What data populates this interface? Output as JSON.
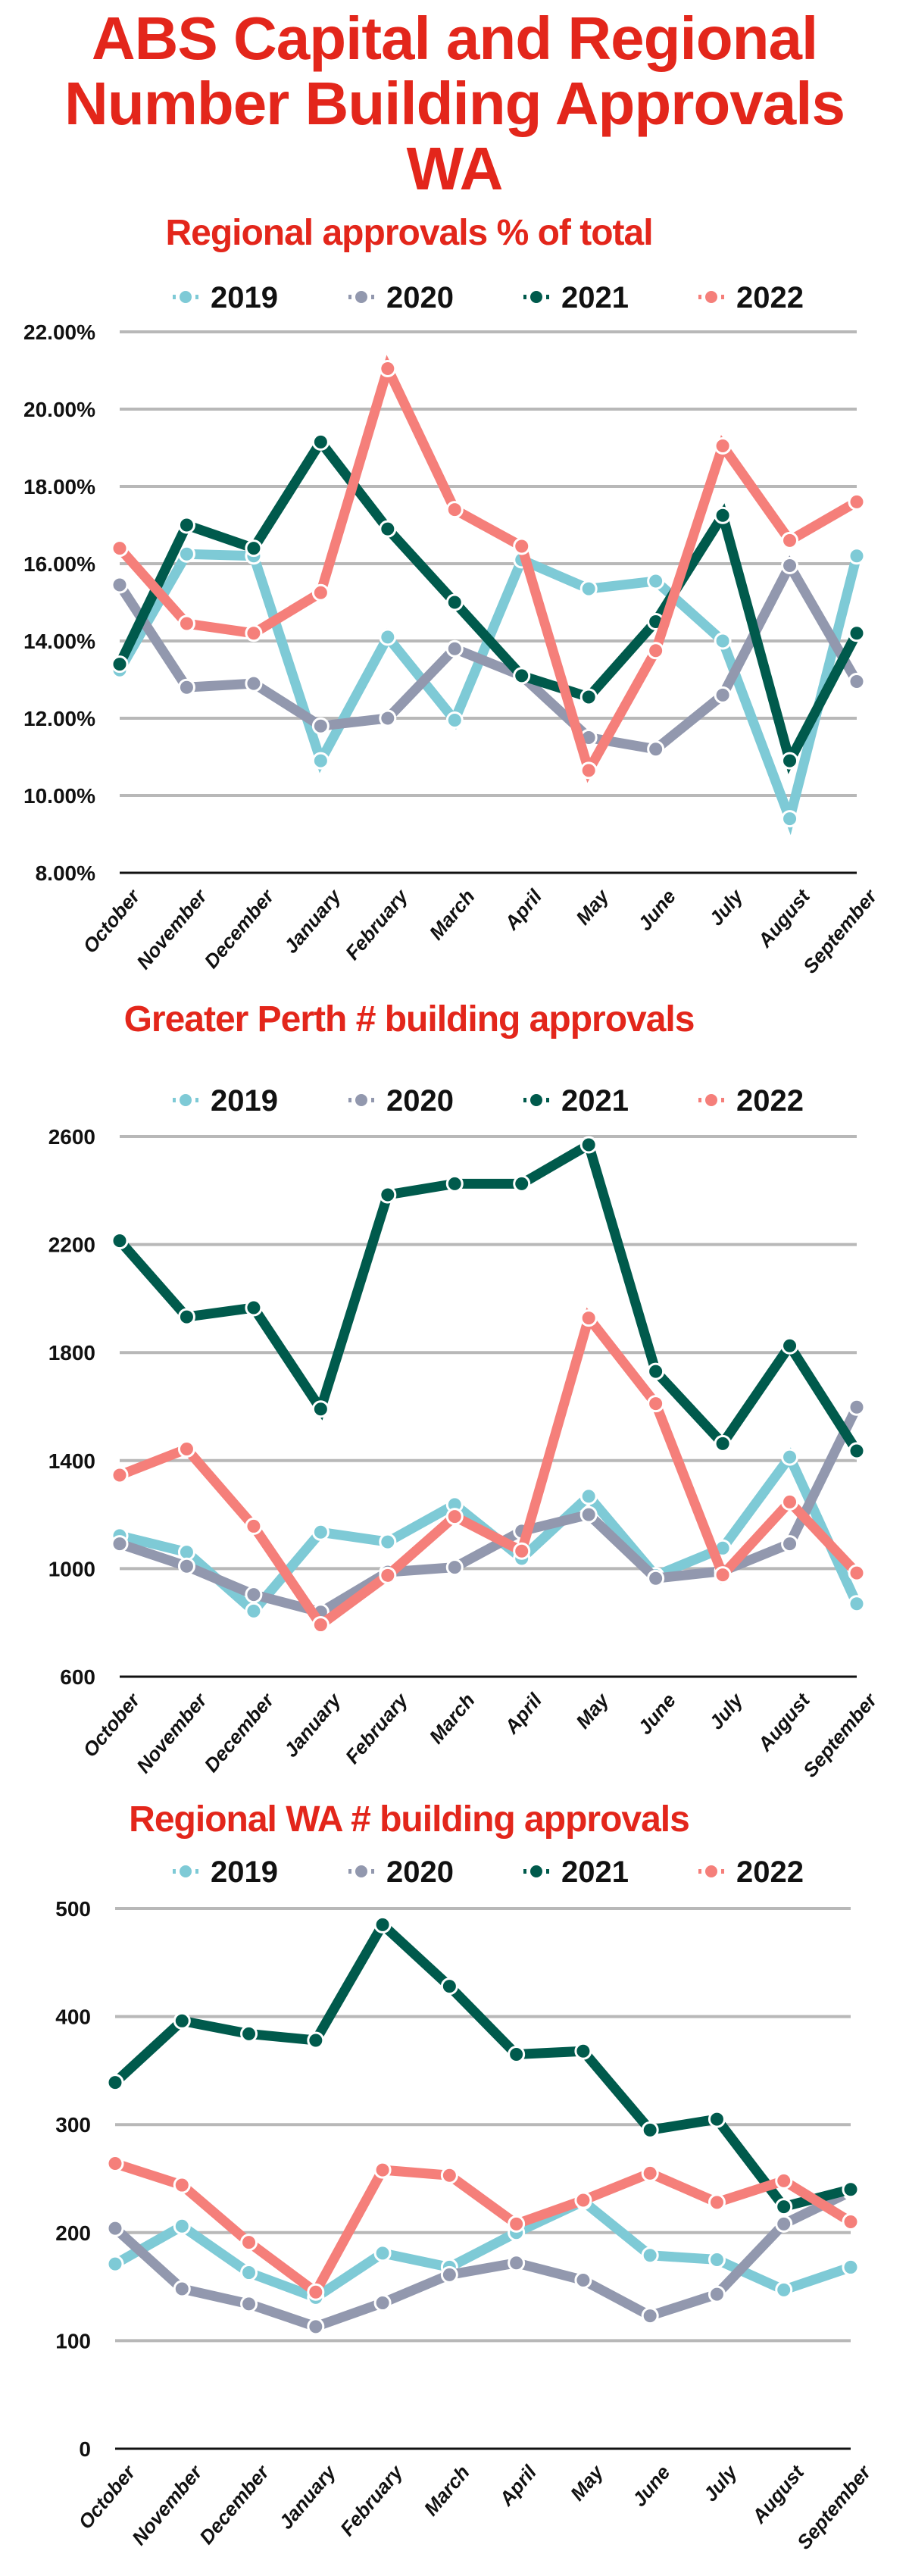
{
  "header": {
    "title_lines": [
      "ABS Capital and Regional",
      "Number  Building Approvals",
      "WA"
    ]
  },
  "legend": [
    {
      "label": "2019",
      "color": "#7ecad6"
    },
    {
      "label": "2020",
      "color": "#9298ae"
    },
    {
      "label": "2021",
      "color": "#005a4c"
    },
    {
      "label": "2022",
      "color": "#f57f7a"
    }
  ],
  "chart_data": [
    {
      "type": "line",
      "title": "Regional approvals % of total",
      "xlabel": "",
      "ylabel": "",
      "categories": [
        "October",
        "November",
        "December",
        "January",
        "February",
        "March",
        "April",
        "May",
        "June",
        "July",
        "August",
        "September"
      ],
      "ylim": [
        8,
        22
      ],
      "yticks": [
        8,
        10,
        12,
        14,
        16,
        18,
        20,
        22
      ],
      "ytick_labels": [
        "8.00%",
        "10.00%",
        "12.00%",
        "14.00%",
        "16.00%",
        "18.00%",
        "20.00%",
        "22.00%"
      ],
      "grid": true,
      "legend_position": "top",
      "series": [
        {
          "name": "2019",
          "values": [
            13.25,
            16.25,
            16.2,
            10.9,
            14.1,
            11.95,
            16.1,
            15.35,
            15.55,
            14.0,
            9.4,
            16.2
          ]
        },
        {
          "name": "2020",
          "values": [
            15.45,
            12.8,
            12.9,
            11.8,
            12.0,
            13.8,
            13.1,
            11.5,
            11.2,
            12.6,
            15.95,
            12.95
          ]
        },
        {
          "name": "2021",
          "values": [
            13.4,
            17.0,
            16.4,
            19.15,
            16.9,
            15.0,
            13.1,
            12.55,
            14.5,
            17.25,
            10.9,
            14.2
          ]
        },
        {
          "name": "2022",
          "values": [
            16.4,
            14.45,
            14.2,
            15.25,
            21.05,
            17.4,
            16.45,
            10.65,
            13.75,
            19.05,
            16.6,
            17.6
          ]
        }
      ]
    },
    {
      "type": "line",
      "title": "Greater Perth # building approvals",
      "xlabel": "",
      "ylabel": "",
      "categories": [
        "October",
        "November",
        "December",
        "January",
        "February",
        "March",
        "April",
        "May",
        "June",
        "July",
        "August",
        "September"
      ],
      "ylim": [
        600,
        2600
      ],
      "yticks": [
        600,
        1000,
        1400,
        1800,
        2200,
        2600
      ],
      "ytick_labels": [
        "600",
        "1000",
        "1400",
        "1800",
        "2200",
        "2600"
      ],
      "grid": true,
      "legend_position": "top",
      "series": [
        {
          "name": "2019",
          "values": [
            1122,
            1061,
            843,
            1135,
            1099,
            1237,
            1038,
            1268,
            974,
            1076,
            1413,
            870
          ]
        },
        {
          "name": "2020",
          "values": [
            1092,
            1009,
            904,
            839,
            987,
            1005,
            1139,
            1200,
            964,
            991,
            1092,
            1598
          ]
        },
        {
          "name": "2021",
          "values": [
            2214,
            1932,
            1966,
            1591,
            2384,
            2425,
            2425,
            2569,
            1730,
            1463,
            1825,
            1436
          ]
        },
        {
          "name": "2022",
          "values": [
            1346,
            1443,
            1157,
            792,
            975,
            1193,
            1065,
            1928,
            1611,
            977,
            1247,
            984
          ]
        }
      ]
    },
    {
      "type": "line",
      "title": "Regional WA  # building approvals",
      "xlabel": "",
      "ylabel": "",
      "categories": [
        "October",
        "November",
        "December",
        "January",
        "February",
        "March",
        "April",
        "May",
        "June",
        "July",
        "August",
        "September"
      ],
      "ylim": [
        0,
        500
      ],
      "yticks": [
        0,
        100,
        200,
        300,
        400,
        500
      ],
      "ytick_labels": [
        "0",
        "100",
        "200",
        "300",
        "400",
        "500"
      ],
      "grid": true,
      "legend_position": "top",
      "series": [
        {
          "name": "2019",
          "values": [
            171,
            206,
            163,
            140,
            181,
            168,
            200,
            229,
            179,
            175,
            147,
            168
          ]
        },
        {
          "name": "2020",
          "values": [
            204,
            148,
            134,
            113,
            135,
            161,
            172,
            156,
            123,
            143,
            208,
            238
          ]
        },
        {
          "name": "2021",
          "values": [
            339,
            396,
            384,
            378,
            485,
            428,
            365,
            368,
            295,
            305,
            224,
            240
          ]
        },
        {
          "name": "2022",
          "values": [
            264,
            244,
            191,
            145,
            258,
            253,
            208,
            230,
            255,
            228,
            248,
            210
          ]
        }
      ]
    }
  ]
}
